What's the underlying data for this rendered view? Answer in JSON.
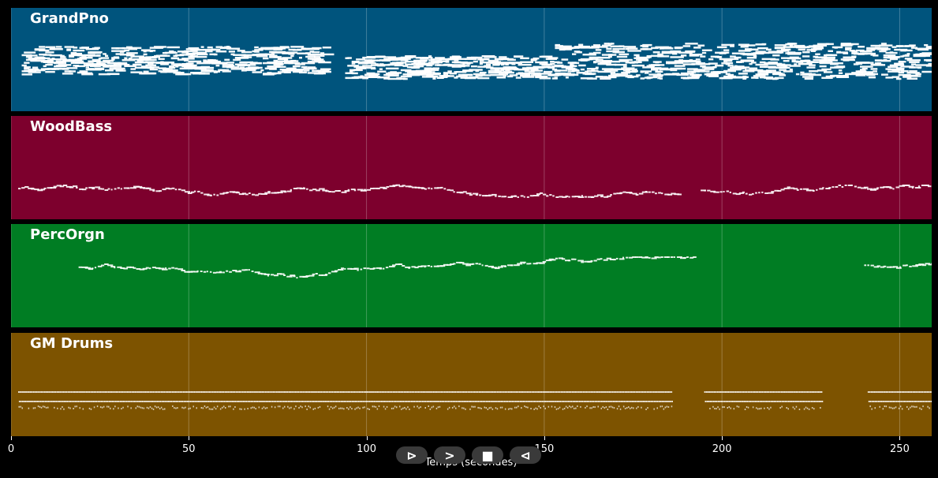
{
  "tracks": [
    {
      "name": "GrandPno",
      "color": "#00547d",
      "style": "piano"
    },
    {
      "name": "WoodBass",
      "color": "#7d002d",
      "style": "bass"
    },
    {
      "name": "PercOrgn",
      "color": "#007d23",
      "style": "organ"
    },
    {
      "name": "GM Drums",
      "color": "#7d5300",
      "style": "drums"
    }
  ],
  "x_axis": {
    "label": "Temps (secondes)",
    "min": 0,
    "max": 259,
    "ticks": [
      "0",
      "50",
      "100",
      "150",
      "200",
      "250"
    ],
    "tick_values": [
      0,
      50,
      100,
      150,
      200,
      250
    ]
  },
  "controls": [
    {
      "name": "rewind-button",
      "glyph": "⊳"
    },
    {
      "name": "play-button",
      "glyph": ">"
    },
    {
      "name": "stop-button",
      "glyph": "■"
    },
    {
      "name": "back-button",
      "glyph": "⊲"
    }
  ]
}
